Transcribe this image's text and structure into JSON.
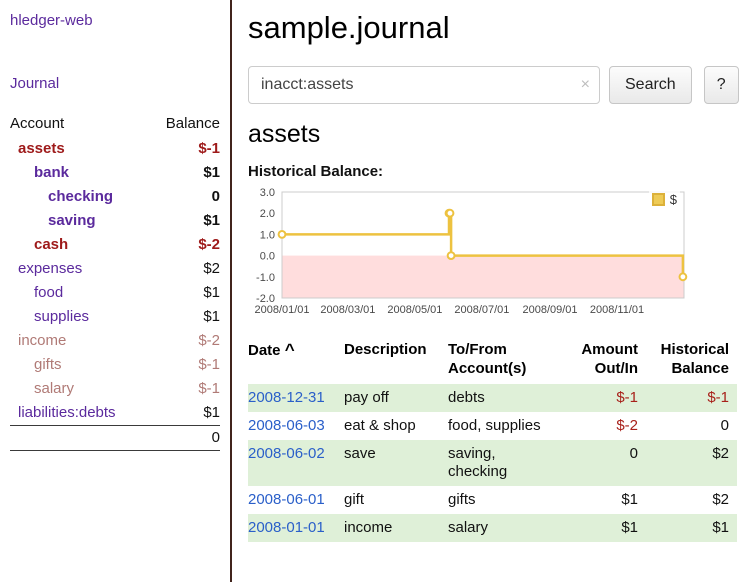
{
  "sidebar": {
    "app_title": "hledger-web",
    "journal_label": "Journal",
    "accounts_table": {
      "headers": {
        "account": "Account",
        "balance": "Balance"
      },
      "rows": [
        {
          "name": "assets",
          "balance": "$-1",
          "level": 1,
          "emph": true,
          "neg": true
        },
        {
          "name": "bank",
          "balance": "$1",
          "level": 2,
          "emph": true,
          "neg": false
        },
        {
          "name": "checking",
          "balance": "0",
          "level": 3,
          "emph": true,
          "neg": false
        },
        {
          "name": "saving",
          "balance": "$1",
          "level": 3,
          "emph": true,
          "neg": false
        },
        {
          "name": "cash",
          "balance": "$-2",
          "level": 2,
          "emph": true,
          "neg": true
        },
        {
          "name": "expenses",
          "balance": "$2",
          "level": 1,
          "emph": false,
          "neg": false
        },
        {
          "name": "food",
          "balance": "$1",
          "level": 2,
          "emph": false,
          "neg": false
        },
        {
          "name": "supplies",
          "balance": "$1",
          "level": 2,
          "emph": false,
          "neg": false
        },
        {
          "name": "income",
          "balance": "$-2",
          "level": 1,
          "emph": false,
          "neg": true
        },
        {
          "name": "gifts",
          "balance": "$-1",
          "level": 2,
          "emph": false,
          "neg": true
        },
        {
          "name": "salary",
          "balance": "$-1",
          "level": 2,
          "emph": false,
          "neg": true
        },
        {
          "name": "liabilities:debts",
          "balance": "$1",
          "level": 1,
          "emph": false,
          "neg": false
        }
      ],
      "total": "0"
    }
  },
  "main": {
    "title": "sample.journal",
    "search": {
      "value": "inacct:assets",
      "clear_icon": "×",
      "button_label": "Search",
      "help_label": "?"
    },
    "account_heading": "assets",
    "chart_title": "Historical Balance:"
  },
  "chart_data": {
    "type": "line",
    "title": "Historical Balance",
    "step": true,
    "series": [
      {
        "name": "$",
        "color": "#edc240",
        "points": [
          [
            "2008-01-01",
            1
          ],
          [
            "2008-06-01",
            2
          ],
          [
            "2008-06-02",
            2
          ],
          [
            "2008-06-03",
            0
          ],
          [
            "2008-12-31",
            -1
          ]
        ]
      }
    ],
    "ylim": [
      -2.0,
      3.0
    ],
    "yticks": [
      3.0,
      2.0,
      1.0,
      0.0,
      -1.0,
      -2.0
    ],
    "xticks": [
      "2008/01/01",
      "2008/03/01",
      "2008/05/01",
      "2008/07/01",
      "2008/09/01",
      "2008/11/01"
    ],
    "x_range": [
      "2008-01-01",
      "2009-01-01"
    ],
    "negative_region_color": "#ffdddd",
    "legend": {
      "label": "$",
      "position": "top-right"
    }
  },
  "register": {
    "headers": {
      "date": "Date",
      "description": "Description",
      "accounts": "To/From Account(s)",
      "amount": "Amount Out/In",
      "balance": "Historical Balance"
    },
    "sort_indicator": "^",
    "rows": [
      {
        "date": "2008-12-31",
        "description": "pay off",
        "accounts": "debts",
        "amount": "$-1",
        "balance": "$-1"
      },
      {
        "date": "2008-06-03",
        "description": "eat & shop",
        "accounts": "food, supplies",
        "amount": "$-2",
        "balance": "0"
      },
      {
        "date": "2008-06-02",
        "description": "save",
        "accounts": "saving, checking",
        "amount": "0",
        "balance": "$2"
      },
      {
        "date": "2008-06-01",
        "description": "gift",
        "accounts": "gifts",
        "amount": "$1",
        "balance": "$2"
      },
      {
        "date": "2008-01-01",
        "description": "income",
        "accounts": "salary",
        "amount": "$1",
        "balance": "$1"
      }
    ]
  }
}
